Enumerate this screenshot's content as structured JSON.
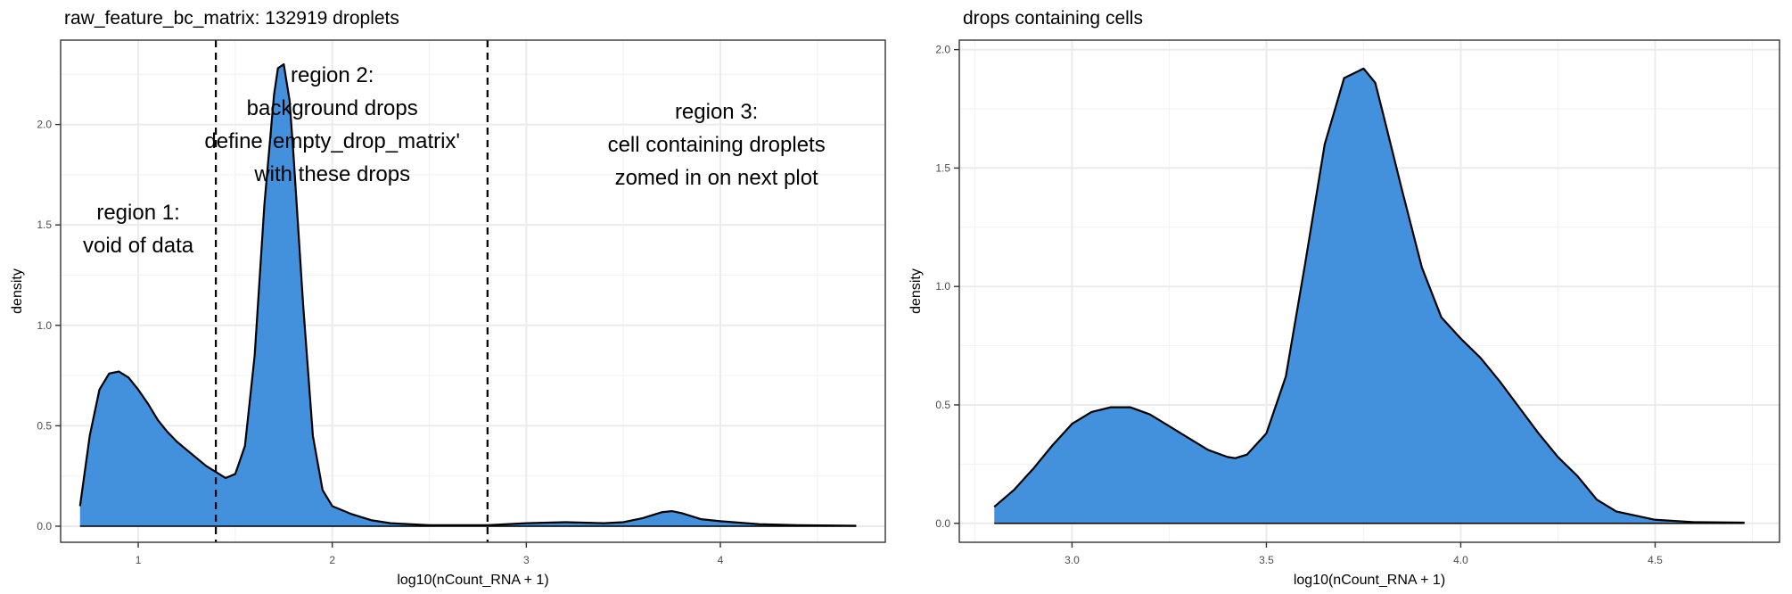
{
  "charts": [
    {
      "title": "raw_feature_bc_matrix: 132919 droplets",
      "type": "area",
      "xlabel": "log10(nCount_RNA + 1)",
      "ylabel": "density",
      "xlim": [
        0.6,
        4.85
      ],
      "ylim": [
        -0.08,
        2.42
      ],
      "x_ticks": [
        1,
        2,
        3,
        4
      ],
      "y_ticks": [
        0.0,
        0.5,
        1.0,
        1.5,
        2.0
      ],
      "x_tick_labels": [
        "1",
        "2",
        "3",
        "4"
      ],
      "y_tick_labels": [
        "0.0",
        "0.5",
        "1.0",
        "1.5",
        "2.0"
      ],
      "grid": true,
      "fill_color": "#4391dc",
      "vlines": [
        1.4,
        2.8
      ],
      "annotations": [
        {
          "x": 1.0,
          "y": 1.48,
          "lines": [
            "region 1:",
            "void of data"
          ]
        },
        {
          "x": 1.0,
          "y": 1.48,
          "lines": []
        },
        {
          "x": 2.0,
          "y": 2.0,
          "lines": [
            "region 2:",
            "background drops",
            "define 'empty_drop_matrix'",
            "with these drops"
          ]
        },
        {
          "x": 3.98,
          "y": 1.9,
          "lines": [
            "region 3:",
            "cell containing droplets",
            "zomed in on next plot"
          ]
        }
      ],
      "x": [
        0.7,
        0.75,
        0.8,
        0.85,
        0.9,
        0.95,
        1.0,
        1.05,
        1.1,
        1.15,
        1.2,
        1.25,
        1.3,
        1.35,
        1.4,
        1.45,
        1.5,
        1.55,
        1.6,
        1.65,
        1.7,
        1.72,
        1.75,
        1.78,
        1.8,
        1.85,
        1.9,
        1.95,
        2.0,
        2.05,
        2.1,
        2.2,
        2.3,
        2.5,
        2.8,
        3.0,
        3.2,
        3.4,
        3.5,
        3.6,
        3.7,
        3.75,
        3.8,
        3.9,
        4.0,
        4.2,
        4.4,
        4.7
      ],
      "y": [
        0.1,
        0.45,
        0.68,
        0.76,
        0.77,
        0.74,
        0.68,
        0.61,
        0.53,
        0.47,
        0.42,
        0.38,
        0.34,
        0.3,
        0.27,
        0.24,
        0.26,
        0.4,
        0.85,
        1.6,
        2.15,
        2.28,
        2.3,
        2.12,
        1.85,
        1.1,
        0.45,
        0.18,
        0.1,
        0.08,
        0.06,
        0.03,
        0.015,
        0.005,
        0.005,
        0.015,
        0.02,
        0.015,
        0.02,
        0.04,
        0.07,
        0.075,
        0.065,
        0.035,
        0.025,
        0.01,
        0.005,
        0.002
      ]
    },
    {
      "title": "drops containing cells",
      "type": "area",
      "xlabel": "log10(nCount_RNA + 1)",
      "ylabel": "density",
      "xlim": [
        2.71,
        4.82
      ],
      "ylim": [
        -0.08,
        2.04
      ],
      "x_ticks": [
        3.0,
        3.5,
        4.0,
        4.5
      ],
      "y_ticks": [
        0.0,
        0.5,
        1.0,
        1.5,
        2.0
      ],
      "x_tick_labels": [
        "3.0",
        "3.5",
        "4.0",
        "4.5"
      ],
      "y_tick_labels": [
        "0.0",
        "0.5",
        "1.0",
        "1.5",
        "2.0"
      ],
      "grid": true,
      "fill_color": "#4391dc",
      "vlines": [],
      "annotations": [],
      "x": [
        2.8,
        2.85,
        2.9,
        2.95,
        3.0,
        3.05,
        3.1,
        3.15,
        3.2,
        3.25,
        3.3,
        3.35,
        3.4,
        3.42,
        3.45,
        3.5,
        3.55,
        3.6,
        3.65,
        3.7,
        3.75,
        3.78,
        3.8,
        3.85,
        3.9,
        3.95,
        4.0,
        4.05,
        4.1,
        4.15,
        4.2,
        4.25,
        4.3,
        4.35,
        4.4,
        4.5,
        4.6,
        4.73
      ],
      "y": [
        0.07,
        0.14,
        0.23,
        0.33,
        0.42,
        0.47,
        0.49,
        0.49,
        0.46,
        0.41,
        0.36,
        0.31,
        0.28,
        0.275,
        0.29,
        0.38,
        0.62,
        1.1,
        1.6,
        1.88,
        1.92,
        1.86,
        1.73,
        1.4,
        1.08,
        0.87,
        0.78,
        0.7,
        0.6,
        0.49,
        0.38,
        0.28,
        0.2,
        0.1,
        0.05,
        0.015,
        0.005,
        0.003
      ]
    }
  ]
}
